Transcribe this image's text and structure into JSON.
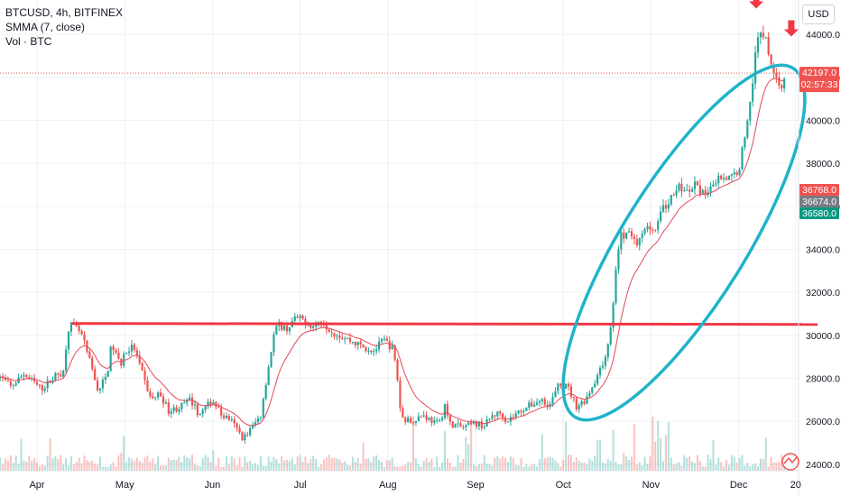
{
  "legend": {
    "symbol": "BTCUSD, 4h, BITFINEX",
    "indicator": "SMMA (7, close)",
    "volume": "Vol · BTC"
  },
  "axis_unit": "USD",
  "colors": {
    "up": "#26a69a",
    "down": "#ef5350",
    "smma": "#e04a57",
    "resistance": "#f23645",
    "ellipse": "#20b3c9",
    "arrow": "#f23645",
    "grid": "#eef0f4",
    "axis_text": "#131722"
  },
  "chart_data": {
    "type": "candlestick",
    "x_axis": {
      "tick_labels": [
        "Apr",
        "May",
        "Jun",
        "Jul",
        "Aug",
        "Sep",
        "Oct",
        "Nov",
        "Dec",
        "20"
      ],
      "tick_months": [
        0,
        1,
        2,
        3,
        4,
        5,
        6,
        7,
        8,
        8.65
      ]
    },
    "y_axis": {
      "range": [
        23700,
        45600
      ],
      "tick_values": [
        24000,
        26000,
        28000,
        30000,
        32000,
        34000,
        36000,
        38000,
        40000,
        42000,
        44000
      ],
      "tick_labels": [
        "24000.0",
        "26000.0",
        "28000.0",
        "30000.0",
        "32000.0",
        "34000.0",
        "36000.0",
        "38000.0",
        "40000.0",
        "42000.0",
        "44000.0"
      ],
      "position": "right"
    },
    "price_path": [
      [
        -0.45,
        28200
      ],
      [
        -0.3,
        27600
      ],
      [
        -0.15,
        28200
      ],
      [
        0.05,
        27500
      ],
      [
        0.2,
        28100
      ],
      [
        0.3,
        28300
      ],
      [
        0.35,
        30300
      ],
      [
        0.4,
        30500
      ],
      [
        0.5,
        30100
      ],
      [
        0.6,
        28800
      ],
      [
        0.7,
        27400
      ],
      [
        0.8,
        28200
      ],
      [
        0.85,
        29600
      ],
      [
        0.95,
        28600
      ],
      [
        1.0,
        29200
      ],
      [
        1.1,
        29500
      ],
      [
        1.2,
        28200
      ],
      [
        1.3,
        27000
      ],
      [
        1.4,
        27300
      ],
      [
        1.5,
        26500
      ],
      [
        1.6,
        26600
      ],
      [
        1.75,
        27000
      ],
      [
        1.85,
        26300
      ],
      [
        2.0,
        27000
      ],
      [
        2.1,
        26300
      ],
      [
        2.2,
        26100
      ],
      [
        2.35,
        25200
      ],
      [
        2.45,
        25700
      ],
      [
        2.55,
        26300
      ],
      [
        2.6,
        27600
      ],
      [
        2.7,
        30000
      ],
      [
        2.75,
        30500
      ],
      [
        2.85,
        30300
      ],
      [
        2.95,
        30800
      ],
      [
        3.05,
        30700
      ],
      [
        3.15,
        30400
      ],
      [
        3.25,
        30700
      ],
      [
        3.35,
        30200
      ],
      [
        3.45,
        30000
      ],
      [
        3.6,
        29700
      ],
      [
        3.75,
        29400
      ],
      [
        3.85,
        29300
      ],
      [
        3.95,
        29800
      ],
      [
        4.0,
        29600
      ],
      [
        4.05,
        29400
      ],
      [
        4.1,
        28400
      ],
      [
        4.15,
        26200
      ],
      [
        4.25,
        26000
      ],
      [
        4.4,
        26300
      ],
      [
        4.55,
        25900
      ],
      [
        4.6,
        26000
      ],
      [
        4.65,
        26800
      ],
      [
        4.7,
        25900
      ],
      [
        4.85,
        25700
      ],
      [
        5.0,
        25900
      ],
      [
        5.1,
        25800
      ],
      [
        5.2,
        26300
      ],
      [
        5.3,
        26400
      ],
      [
        5.35,
        26000
      ],
      [
        5.45,
        26300
      ],
      [
        5.55,
        26600
      ],
      [
        5.65,
        26800
      ],
      [
        5.75,
        27000
      ],
      [
        5.85,
        26800
      ],
      [
        5.95,
        27700
      ],
      [
        6.05,
        27600
      ],
      [
        6.15,
        26700
      ],
      [
        6.25,
        27000
      ],
      [
        6.35,
        27800
      ],
      [
        6.45,
        28600
      ],
      [
        6.55,
        30400
      ],
      [
        6.6,
        33000
      ],
      [
        6.65,
        34600
      ],
      [
        6.75,
        34800
      ],
      [
        6.85,
        34300
      ],
      [
        6.95,
        35000
      ],
      [
        7.05,
        35100
      ],
      [
        7.1,
        35600
      ],
      [
        7.2,
        36200
      ],
      [
        7.3,
        37000
      ],
      [
        7.4,
        36600
      ],
      [
        7.5,
        37000
      ],
      [
        7.6,
        36500
      ],
      [
        7.7,
        37100
      ],
      [
        7.8,
        37400
      ],
      [
        7.9,
        37300
      ],
      [
        8.0,
        37700
      ],
      [
        8.05,
        38800
      ],
      [
        8.1,
        40000
      ],
      [
        8.15,
        41500
      ],
      [
        8.2,
        43800
      ],
      [
        8.3,
        44000
      ],
      [
        8.35,
        43000
      ],
      [
        8.42,
        42000
      ],
      [
        8.5,
        41500
      ],
      [
        8.55,
        42200
      ]
    ],
    "volume": "histogram along the bottom of the price pane",
    "smma_line": "SMMA (7, close) overlay following closes",
    "price_labels": [
      {
        "value": 42197.0,
        "text": "42197.0",
        "sub": "02:57:33",
        "color": "#ef5350"
      },
      {
        "value": 36768.0,
        "text": "36768.0",
        "color": "#ef5350"
      },
      {
        "value": 36674.0,
        "text": "36674.0",
        "color": "#787b86"
      },
      {
        "value": 36580.0,
        "text": "36580.0",
        "color": "#089981"
      }
    ],
    "current_price_line": 42197.0,
    "annotations": {
      "resistance_line": {
        "value": 30550,
        "from_month": 0.4,
        "to_month": 8.9
      },
      "ellipse": "rotated ellipse drawn around the October–December rally",
      "arrows": [
        {
          "month": 8.2,
          "price": 45200
        },
        {
          "month": 8.6,
          "price": 43900
        }
      ]
    },
    "grid": true,
    "legend_position": "top-left"
  }
}
